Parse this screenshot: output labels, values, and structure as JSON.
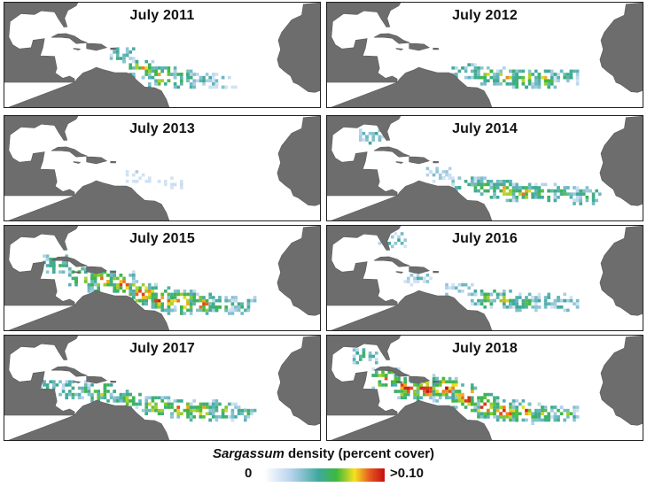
{
  "panels": [
    {
      "title": "July 2011",
      "bloom": [
        {
          "lon": -64,
          "lat": 17,
          "intensity": 0.45
        },
        {
          "lon": -58,
          "lat": 12,
          "intensity": 0.7
        },
        {
          "lon": -52,
          "lat": 10,
          "intensity": 0.75
        },
        {
          "lon": -46,
          "lat": 9,
          "intensity": 0.55
        },
        {
          "lon": -40,
          "lat": 8.5,
          "intensity": 0.35
        },
        {
          "lon": -34,
          "lat": 8,
          "intensity": 0.25
        }
      ]
    },
    {
      "title": "July 2012",
      "bloom": [
        {
          "lon": -58,
          "lat": 11.5,
          "intensity": 0.45
        },
        {
          "lon": -52,
          "lat": 10,
          "intensity": 0.6
        },
        {
          "lon": -46,
          "lat": 9.5,
          "intensity": 0.7
        },
        {
          "lon": -40,
          "lat": 9,
          "intensity": 0.7
        },
        {
          "lon": -34,
          "lat": 9,
          "intensity": 0.6
        },
        {
          "lon": -28,
          "lat": 10,
          "intensity": 0.45
        }
      ]
    },
    {
      "title": "July 2013",
      "bloom": [
        {
          "lon": -60,
          "lat": 14,
          "intensity": 0.08
        },
        {
          "lon": -50,
          "lat": 12,
          "intensity": 0.06
        }
      ]
    },
    {
      "title": "July 2014",
      "bloom": [
        {
          "lon": -86,
          "lat": 27,
          "intensity": 0.35
        },
        {
          "lon": -66,
          "lat": 15,
          "intensity": 0.3
        },
        {
          "lon": -58,
          "lat": 12,
          "intensity": 0.5
        },
        {
          "lon": -52,
          "lat": 10.5,
          "intensity": 0.65
        },
        {
          "lon": -46,
          "lat": 9.5,
          "intensity": 0.7
        },
        {
          "lon": -40,
          "lat": 9,
          "intensity": 0.7
        },
        {
          "lon": -34,
          "lat": 9,
          "intensity": 0.6
        },
        {
          "lon": -28,
          "lat": 8.5,
          "intensity": 0.5
        },
        {
          "lon": -22,
          "lat": 8,
          "intensity": 0.45
        }
      ]
    },
    {
      "title": "July 2015",
      "bloom": [
        {
          "lon": -84,
          "lat": 21,
          "intensity": 0.5
        },
        {
          "lon": -76,
          "lat": 17,
          "intensity": 0.7
        },
        {
          "lon": -70,
          "lat": 16,
          "intensity": 0.85
        },
        {
          "lon": -64,
          "lat": 15,
          "intensity": 0.85
        },
        {
          "lon": -58,
          "lat": 12,
          "intensity": 0.9
        },
        {
          "lon": -52,
          "lat": 10,
          "intensity": 0.95
        },
        {
          "lon": -46,
          "lat": 9,
          "intensity": 0.9
        },
        {
          "lon": -40,
          "lat": 8.5,
          "intensity": 0.75
        },
        {
          "lon": -34,
          "lat": 8,
          "intensity": 0.55
        },
        {
          "lon": -28,
          "lat": 8,
          "intensity": 0.4
        }
      ]
    },
    {
      "title": "July 2016",
      "bloom": [
        {
          "lon": -80,
          "lat": 29,
          "intensity": 0.3
        },
        {
          "lon": -72,
          "lat": 17,
          "intensity": 0.25
        },
        {
          "lon": -60,
          "lat": 13,
          "intensity": 0.3
        },
        {
          "lon": -52,
          "lat": 10.5,
          "intensity": 0.55
        },
        {
          "lon": -46,
          "lat": 9.5,
          "intensity": 0.6
        },
        {
          "lon": -40,
          "lat": 9,
          "intensity": 0.5
        },
        {
          "lon": -34,
          "lat": 9,
          "intensity": 0.4
        },
        {
          "lon": -28,
          "lat": 9,
          "intensity": 0.35
        }
      ]
    },
    {
      "title": "July 2017",
      "bloom": [
        {
          "lon": -86,
          "lat": 17,
          "intensity": 0.4
        },
        {
          "lon": -78,
          "lat": 16,
          "intensity": 0.55
        },
        {
          "lon": -70,
          "lat": 15.5,
          "intensity": 0.6
        },
        {
          "lon": -62,
          "lat": 13,
          "intensity": 0.6
        },
        {
          "lon": -54,
          "lat": 11,
          "intensity": 0.75
        },
        {
          "lon": -46,
          "lat": 10,
          "intensity": 0.8
        },
        {
          "lon": -40,
          "lat": 9.5,
          "intensity": 0.75
        },
        {
          "lon": -34,
          "lat": 9,
          "intensity": 0.6
        },
        {
          "lon": -28,
          "lat": 9,
          "intensity": 0.45
        }
      ]
    },
    {
      "title": "July 2018",
      "bloom": [
        {
          "lon": -88,
          "lat": 27,
          "intensity": 0.45
        },
        {
          "lon": -82,
          "lat": 20,
          "intensity": 0.75
        },
        {
          "lon": -76,
          "lat": 17,
          "intensity": 0.9
        },
        {
          "lon": -70,
          "lat": 16.5,
          "intensity": 0.95
        },
        {
          "lon": -64,
          "lat": 17,
          "intensity": 0.95
        },
        {
          "lon": -58,
          "lat": 14,
          "intensity": 0.95
        },
        {
          "lon": -52,
          "lat": 11,
          "intensity": 0.95
        },
        {
          "lon": -46,
          "lat": 9.5,
          "intensity": 0.9
        },
        {
          "lon": -40,
          "lat": 9,
          "intensity": 0.8
        },
        {
          "lon": -34,
          "lat": 8.5,
          "intensity": 0.6
        },
        {
          "lon": -28,
          "lat": 8.5,
          "intensity": 0.5
        }
      ]
    }
  ],
  "legend": {
    "title_italic": "Sargassum",
    "title_rest": " density (percent cover)",
    "min_label": "0",
    "max_label": ">0.10"
  },
  "colors": {
    "land": "#6d6d6d",
    "ocean": "#ffffff",
    "scale": [
      "#ffffff",
      "#b9d3ee",
      "#3fa9a0",
      "#3cb83c",
      "#f4e21f",
      "#e6551f",
      "#c40f0f"
    ]
  }
}
